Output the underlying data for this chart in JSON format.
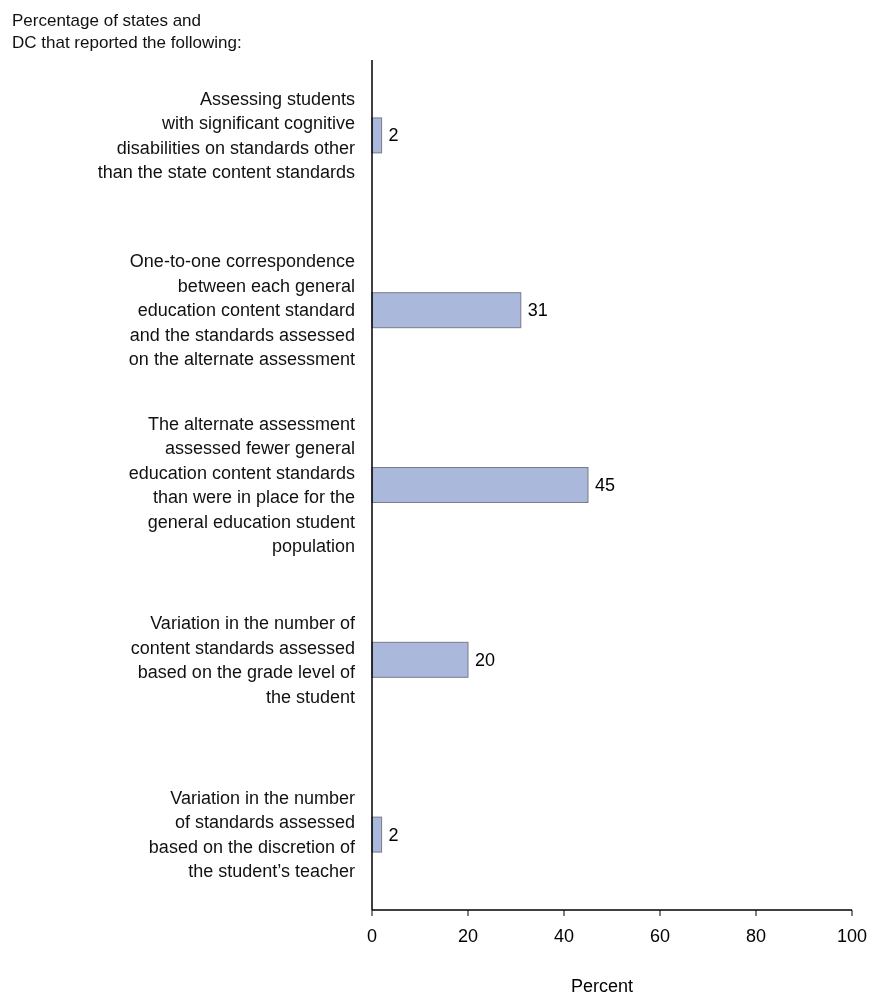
{
  "chart_data": {
    "type": "bar",
    "orientation": "horizontal",
    "title": "Percentage of states and\nDC that reported the following:",
    "xlabel": "Percent",
    "categories": [
      "Assessing students\nwith significant cognitive\ndisabilities on standards other\nthan the state content standards",
      "One-to-one correspondence\nbetween each general\neducation content standard\nand the standards assessed\non the alternate assessment",
      "The alternate assessment\nassessed fewer general\neducation content standards\nthan were in place for the\ngeneral education student\npopulation",
      "Variation in the number of\ncontent standards assessed\nbased on the grade level of\nthe student",
      "Variation in the number\nof standards assessed\nbased on the discretion of\nthe student’s teacher"
    ],
    "values": [
      2,
      31,
      45,
      20,
      2
    ],
    "color": "#aab8dc",
    "data_labels": true,
    "xlim": [
      0,
      100
    ],
    "xticks": [
      0,
      20,
      40,
      60,
      80,
      100
    ],
    "grid": false
  }
}
